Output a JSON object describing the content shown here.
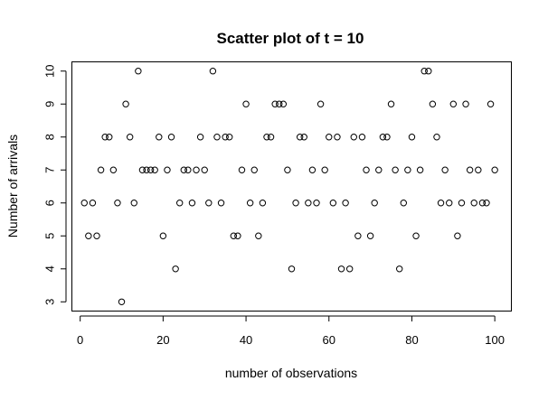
{
  "chart_data": {
    "type": "scatter",
    "title": "Scatter plot of t = 10",
    "xlabel": "number of observations",
    "ylabel": "Number of arrivals",
    "xlim": [
      -2,
      104
    ],
    "ylim": [
      2.72,
      10.28
    ],
    "xticks": [
      0,
      20,
      40,
      60,
      80,
      100
    ],
    "yticks": [
      3,
      4,
      5,
      6,
      7,
      8,
      9,
      10
    ],
    "grid": false,
    "marker": "open-circle",
    "x": [
      1,
      2,
      3,
      4,
      5,
      6,
      7,
      8,
      9,
      10,
      11,
      12,
      13,
      14,
      15,
      16,
      17,
      18,
      19,
      20,
      21,
      22,
      23,
      24,
      25,
      26,
      27,
      28,
      29,
      30,
      31,
      32,
      33,
      34,
      35,
      36,
      37,
      38,
      39,
      40,
      41,
      42,
      43,
      44,
      45,
      46,
      47,
      48,
      49,
      50,
      51,
      52,
      53,
      54,
      55,
      56,
      57,
      58,
      59,
      60,
      61,
      62,
      63,
      64,
      65,
      66,
      67,
      68,
      69,
      70,
      71,
      72,
      73,
      74,
      75,
      76,
      77,
      78,
      79,
      80,
      81,
      82,
      83,
      84,
      85,
      86,
      87,
      88,
      89,
      90,
      91,
      92,
      93,
      94,
      95,
      96,
      97,
      98,
      99,
      100
    ],
    "y": [
      6,
      5,
      6,
      5,
      7,
      8,
      8,
      7,
      6,
      3,
      9,
      8,
      6,
      10,
      7,
      7,
      7,
      7,
      8,
      5,
      7,
      8,
      4,
      6,
      7,
      7,
      6,
      7,
      8,
      7,
      6,
      10,
      8,
      6,
      8,
      8,
      5,
      5,
      7,
      9,
      6,
      7,
      5,
      6,
      8,
      8,
      9,
      9,
      9,
      7,
      4,
      6,
      8,
      8,
      6,
      7,
      6,
      9,
      7,
      8,
      6,
      8,
      4,
      6,
      4,
      8,
      5,
      8,
      7,
      5,
      6,
      7,
      8,
      8,
      9,
      7,
      4,
      6,
      7,
      8,
      5,
      7,
      10,
      10,
      9,
      8,
      6,
      7,
      6,
      9,
      5,
      6,
      9,
      7,
      6,
      7,
      6,
      6,
      9,
      7
    ]
  }
}
